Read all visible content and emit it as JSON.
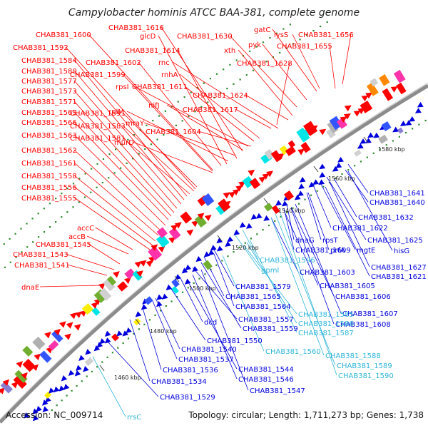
{
  "title": "Campylobacter hominis ATCC BAA-381, complete genome",
  "footer": {
    "accession": "Accession: NC_009714",
    "summary": "Topology: circular; Length: 1,711,273 bp; Genes: 1,738"
  },
  "colors": {
    "forward": "#ff0000",
    "reverse": "#0000dd",
    "rna": "#2fb6d8",
    "backbone": "#8c8c8c",
    "dots": "#2e8b2e"
  },
  "ticks": [
    {
      "text": "1460 kbp"
    },
    {
      "text": "1480 kbp"
    },
    {
      "text": "1500 kbp"
    },
    {
      "text": "1520 kbp"
    },
    {
      "text": "1540 kbp"
    },
    {
      "text": "1560 kbp"
    },
    {
      "text": "1580 kbp"
    }
  ],
  "forward_labels": [
    "CHAB381_1600",
    "CHAB381_1616",
    "glcD",
    "CHAB381_1614",
    "rnc",
    "CHAB381_1630",
    "xth",
    "CHAB381_1628",
    "gatC",
    "lysS",
    "pyk",
    "CHAB381_1656",
    "CHAB381_1655",
    "CHAB381_1592",
    "CHAB381_1584",
    "CHAB381_1580",
    "CHAB381_1577",
    "CHAB381_1573",
    "CHAB381_1571",
    "CHAB381_1569",
    "CHAB381_1566",
    "CHAB381_1563",
    "CHAB381_1562",
    "CHAB381_1561",
    "CHAB381_1558",
    "CHAB381_1556",
    "CHAB381_1555",
    "CHAB381_1602",
    "CHAB381_1599",
    "rpsI",
    "CHAB381_1611",
    "rnhA",
    "CHAB381_1624",
    "nifJ",
    "CHAB381_1617",
    "CHAB381_1591",
    "rplM",
    "mraY",
    "CHAB381_1583",
    "CHAB381_1604",
    "CHAB381_1581",
    "murD",
    "accC",
    "accB",
    "CHAB381_1545",
    "CHAB381_1543",
    "CHAB381_1541",
    "dnaE"
  ],
  "reverse_labels": [
    "CHAB381_1641",
    "CHAB381_1640",
    "CHAB381_1632",
    "CHAB381_1622",
    "rpsT",
    "CHAB381_1625",
    "dnaG",
    "CHAB381_1609",
    "prfA",
    "mgtE",
    "hisG",
    "CHAB381_1627",
    "CHAB381_1621",
    "CHAB381_1603",
    "CHAB381_1605",
    "CHAB381_1579",
    "CHAB381_1606",
    "CHAB381_1565",
    "CHAB381_1564",
    "CHAB381_1607",
    "CHAB381_1608",
    "CHAB381_1557",
    "dcd",
    "CHAB381_1559",
    "CHAB381_1550",
    "CHAB381_1540",
    "CHAB381_1537",
    "CHAB381_1544",
    "CHAB381_1536",
    "CHAB381_1546",
    "CHAB381_1534",
    "CHAB381_1547",
    "CHAB381_1529"
  ],
  "rna_labels": [
    "gpmI",
    "CHAB381_1596",
    "CHAB381_1585",
    "CHAB381_1586",
    "CHAB381_1587",
    "CHAB381_1560",
    "CHAB381_1588",
    "CHAB381_1589",
    "CHAB381_1590",
    "rrsC"
  ]
}
